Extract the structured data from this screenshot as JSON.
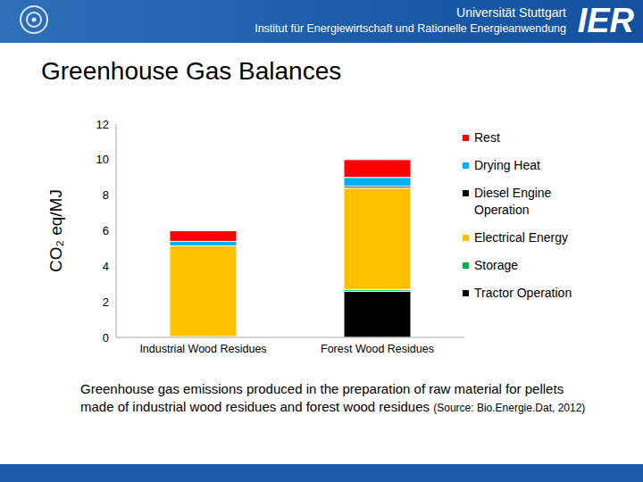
{
  "header": {
    "university": "Universität Stuttgart",
    "institute": "Institut für Energiewirtschaft und Rationelle Energieanwendung",
    "logo": "IER"
  },
  "slide_title": "Greenhouse Gas Balances",
  "caption": {
    "text": "Greenhouse gas emissions produced in the preparation of raw material for pellets made of industrial wood residues and forest wood residues",
    "source": "(Source: Bio.Energie.Dat, 2012)"
  },
  "chart_data": {
    "type": "bar",
    "stacked": true,
    "categories": [
      "Industrial Wood Residues",
      "Forest Wood Residues"
    ],
    "y_label": "CO₂ eq/MJ",
    "ylim": [
      0,
      12
    ],
    "yticks": [
      0,
      2,
      4,
      6,
      8,
      10,
      12
    ],
    "grid": false,
    "legend": "right",
    "series": [
      {
        "name": "Tractor Operation",
        "color": "#000000",
        "values": [
          0,
          2.6
        ]
      },
      {
        "name": "Storage",
        "color": "#00b050",
        "values": [
          0.05,
          0.1
        ]
      },
      {
        "name": "Electrical Energy",
        "color": "#ffc000",
        "values": [
          5.1,
          5.7
        ]
      },
      {
        "name": "Diesel Engine Operation",
        "color": "#000000",
        "values": [
          0,
          0.1
        ]
      },
      {
        "name": "Drying Heat",
        "color": "#00b0f0",
        "values": [
          0.25,
          0.5
        ]
      },
      {
        "name": "Rest",
        "color": "#ff0000",
        "values": [
          0.6,
          1.0
        ]
      }
    ]
  }
}
